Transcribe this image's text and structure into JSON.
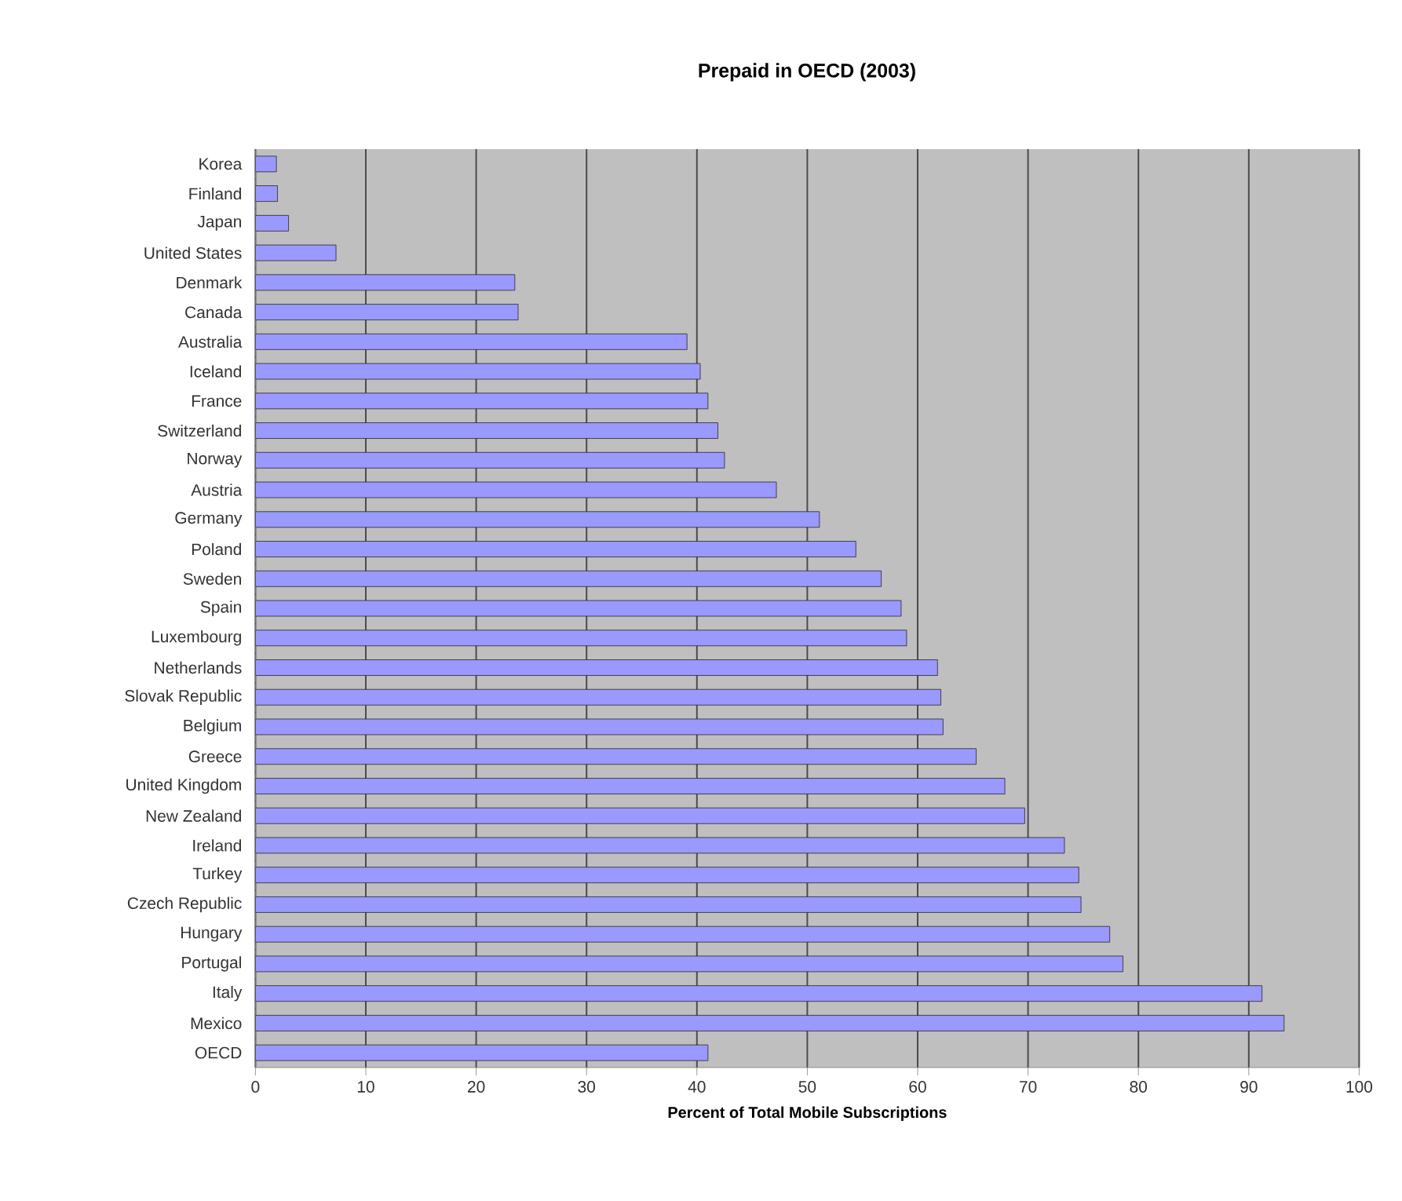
{
  "chart_data": {
    "type": "bar",
    "orientation": "horizontal",
    "title": "Prepaid in OECD (2003)",
    "xlabel": "Percent of Total Mobile Subscriptions",
    "categories": [
      "Korea",
      "Finland",
      "Japan",
      "United States",
      "Denmark",
      "Canada",
      "Australia",
      "Iceland",
      "France",
      "Switzerland",
      "Norway",
      "Austria",
      "Germany",
      "Poland",
      "Sweden",
      "Spain",
      "Luxembourg",
      "Netherlands",
      "Slovak Republic",
      "Belgium",
      "Greece",
      "United Kingdom",
      "New Zealand",
      "Ireland",
      "Turkey",
      "Czech Republic",
      "Hungary",
      "Portugal",
      "Italy",
      "Mexico",
      "OECD"
    ],
    "values": [
      1.9,
      2.0,
      3.0,
      7.3,
      23.5,
      23.8,
      39.1,
      40.3,
      41.0,
      41.9,
      42.5,
      47.2,
      51.1,
      54.4,
      56.7,
      58.5,
      59.0,
      61.8,
      62.1,
      62.3,
      65.3,
      67.9,
      69.7,
      73.3,
      74.6,
      74.8,
      77.4,
      78.6,
      91.2,
      93.2,
      41.0
    ],
    "color": "#9999ff",
    "xlim": [
      0,
      100
    ],
    "xticks": [
      0,
      10,
      20,
      30,
      40,
      50,
      60,
      70,
      80,
      90,
      100
    ],
    "grid": "x"
  }
}
